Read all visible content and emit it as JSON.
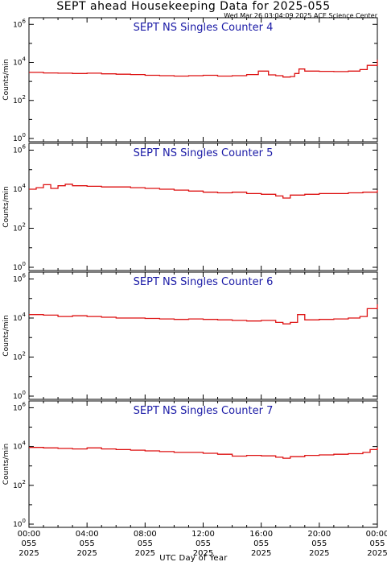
{
  "header": {
    "title": "SEPT ahead Housekeeping Data for 2025-055",
    "subtitle": "Wed Mar 26 03:04:09 2025 ACE Science Center"
  },
  "x_axis": {
    "title": "UTC Day of Year",
    "ticks": [
      {
        "time": "00:00",
        "day": "055",
        "year": "2025"
      },
      {
        "time": "04:00",
        "day": "055",
        "year": "2025"
      },
      {
        "time": "08:00",
        "day": "055",
        "year": "2025"
      },
      {
        "time": "12:00",
        "day": "055",
        "year": "2025"
      },
      {
        "time": "16:00",
        "day": "055",
        "year": "2025"
      },
      {
        "time": "20:00",
        "day": "055",
        "year": "2025"
      },
      {
        "time": "00:00",
        "day": "055",
        "year": "2025"
      }
    ]
  },
  "colors": {
    "line": "#dd1111",
    "panel_title": "#1a1aa6",
    "axes": "#000000"
  },
  "chart_data": [
    {
      "type": "line",
      "title": "SEPT NS Singles Counter 4",
      "ylabel": "Counts/min",
      "yscale": "log",
      "ylim": [
        1,
        1000000
      ],
      "xlim": [
        0,
        24
      ],
      "ytick_labels": [
        "10^0",
        "10^2",
        "10^4",
        "10^6"
      ],
      "x": [
        0,
        1,
        2,
        3,
        4,
        5,
        6,
        7,
        8,
        9,
        10,
        11,
        12,
        13,
        14,
        15,
        15.8,
        16.5,
        17,
        17.5,
        18,
        18.3,
        18.6,
        19,
        20,
        21,
        22,
        22.8,
        23.3,
        24
      ],
      "y": [
        3000,
        2800,
        2700,
        2600,
        2700,
        2500,
        2400,
        2300,
        2100,
        2000,
        1900,
        2000,
        2100,
        1900,
        2000,
        2300,
        3500,
        2200,
        2000,
        1700,
        1800,
        2600,
        4500,
        3500,
        3400,
        3300,
        3500,
        4200,
        7000,
        14000
      ]
    },
    {
      "type": "line",
      "title": "SEPT NS Singles Counter 5",
      "ylabel": "Counts/min",
      "yscale": "log",
      "ylim": [
        1,
        1000000
      ],
      "xlim": [
        0,
        24
      ],
      "ytick_labels": [
        "10^0",
        "10^2",
        "10^4",
        "10^6"
      ],
      "x": [
        0,
        0.5,
        1,
        1.5,
        2,
        2.5,
        3,
        4,
        5,
        6,
        7,
        8,
        9,
        10,
        11,
        12,
        13,
        14,
        15,
        16,
        17,
        17.5,
        18,
        19,
        20,
        21,
        22,
        23,
        24
      ],
      "y": [
        10000,
        12000,
        17000,
        11000,
        15000,
        18000,
        15000,
        14000,
        13000,
        13000,
        12000,
        11000,
        10000,
        9000,
        8000,
        7000,
        6500,
        7000,
        6000,
        5500,
        4500,
        3500,
        5000,
        5500,
        6000,
        6000,
        6500,
        7000,
        9000
      ]
    },
    {
      "type": "line",
      "title": "SEPT NS Singles Counter 6",
      "ylabel": "Counts/min",
      "yscale": "log",
      "ylim": [
        1,
        1000000
      ],
      "xlim": [
        0,
        24
      ],
      "ytick_labels": [
        "10^0",
        "10^2",
        "10^4",
        "10^6"
      ],
      "x": [
        0,
        1,
        2,
        3,
        4,
        5,
        6,
        7,
        8,
        9,
        10,
        11,
        12,
        13,
        14,
        15,
        16,
        17,
        17.5,
        18,
        18.5,
        19,
        20,
        21,
        22,
        22.8,
        23.3,
        24
      ],
      "y": [
        15000,
        14000,
        12000,
        13000,
        12000,
        11000,
        10000,
        10000,
        9500,
        9000,
        8500,
        9000,
        8500,
        8000,
        7500,
        7000,
        7500,
        6000,
        5000,
        6000,
        15000,
        8000,
        8500,
        9000,
        10000,
        12000,
        30000,
        50000
      ]
    },
    {
      "type": "line",
      "title": "SEPT NS Singles Counter 7",
      "ylabel": "Counts/min",
      "yscale": "log",
      "ylim": [
        1,
        1000000
      ],
      "xlim": [
        0,
        24
      ],
      "ytick_labels": [
        "10^0",
        "10^2",
        "10^4",
        "10^6"
      ],
      "x": [
        0,
        1,
        2,
        3,
        4,
        5,
        6,
        7,
        8,
        9,
        10,
        11,
        12,
        13,
        14,
        15,
        16,
        17,
        17.5,
        18,
        19,
        20,
        21,
        22,
        23,
        23.5,
        24
      ],
      "y": [
        9000,
        8500,
        8000,
        7500,
        8500,
        7500,
        7000,
        6500,
        6000,
        5500,
        5000,
        5000,
        4500,
        4000,
        3200,
        3500,
        3300,
        2800,
        2500,
        3000,
        3500,
        3700,
        4000,
        4300,
        5000,
        7000,
        9000
      ]
    }
  ]
}
